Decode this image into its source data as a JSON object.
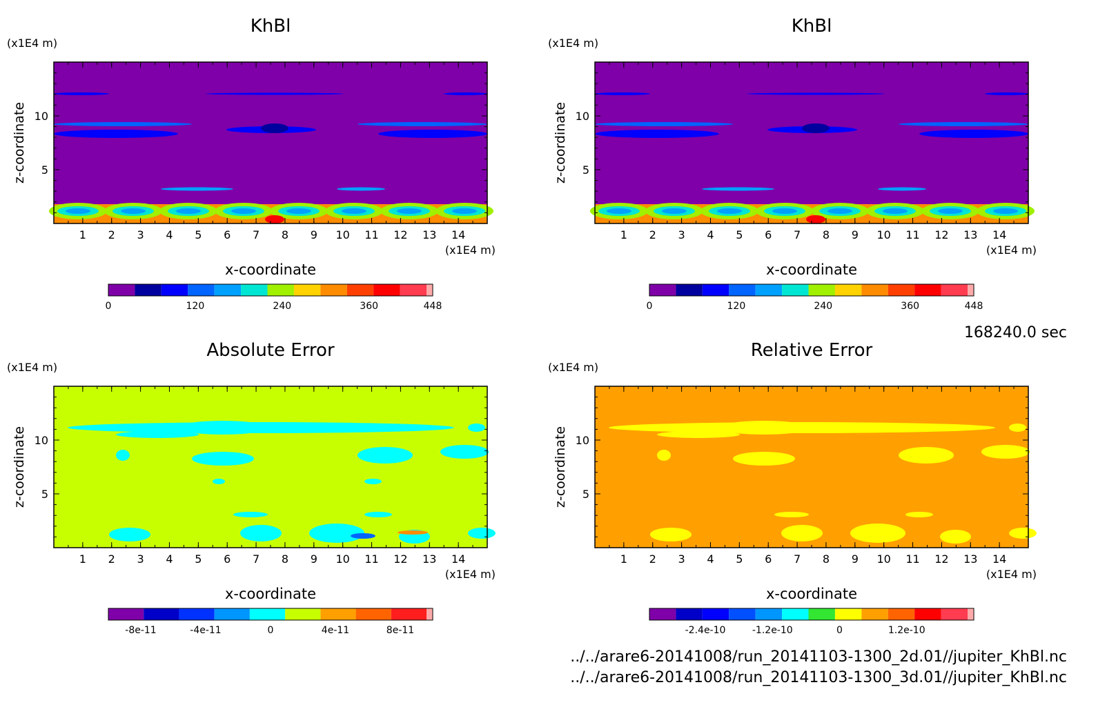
{
  "time_label": "168240.0 sec",
  "files": [
    "../../arare6-20141008/run_20141103-1300_2d.01//jupiter_KhBl.nc",
    "../../arare6-20141008/run_20141103-1300_3d.01//jupiter_KhBl.nc"
  ],
  "chart_data": [
    {
      "type": "heatmap",
      "title": "KhBl",
      "xlabel": "x-coordinate",
      "ylabel": "z-coordinate",
      "x_unit": "(x1E4 m)",
      "y_unit": "(x1E4 m)",
      "xlim": [
        0,
        15
      ],
      "ylim": [
        0,
        15
      ],
      "x_ticks": [
        "1",
        "2",
        "3",
        "4",
        "5",
        "6",
        "7",
        "8",
        "9",
        "10",
        "11",
        "12",
        "13",
        "14"
      ],
      "y_ticks": [
        "5",
        "10"
      ],
      "colorbar": {
        "colors": [
          "#7f00a8",
          "#00009e",
          "#0000ff",
          "#0064ff",
          "#00a0ff",
          "#00e6d2",
          "#a0f000",
          "#ffd200",
          "#ff8c00",
          "#ff4000",
          "#ff0000",
          "#ff3c50",
          "#ffaaaa"
        ],
        "tick_labels": [
          "0",
          "120",
          "240",
          "360",
          "448"
        ],
        "tick_values": [
          0,
          120,
          240,
          360,
          448
        ],
        "range": [
          0,
          448
        ]
      },
      "background": "#7f00a8"
    },
    {
      "type": "heatmap",
      "title": "KhBl",
      "xlabel": "x-coordinate",
      "ylabel": "z-coordinate",
      "x_unit": "(x1E4 m)",
      "y_unit": "(x1E4 m)",
      "xlim": [
        0,
        15
      ],
      "ylim": [
        0,
        15
      ],
      "x_ticks": [
        "1",
        "2",
        "3",
        "4",
        "5",
        "6",
        "7",
        "8",
        "9",
        "10",
        "11",
        "12",
        "13",
        "14"
      ],
      "y_ticks": [
        "5",
        "10"
      ],
      "colorbar": {
        "colors": [
          "#7f00a8",
          "#00009e",
          "#0000ff",
          "#0064ff",
          "#00a0ff",
          "#00e6d2",
          "#a0f000",
          "#ffd200",
          "#ff8c00",
          "#ff4000",
          "#ff0000",
          "#ff3c50",
          "#ffaaaa"
        ],
        "tick_labels": [
          "0",
          "120",
          "240",
          "360",
          "448"
        ],
        "tick_values": [
          0,
          120,
          240,
          360,
          448
        ],
        "range": [
          0,
          448
        ]
      },
      "background": "#7f00a8"
    },
    {
      "type": "heatmap",
      "title": "Absolute Error",
      "xlabel": "x-coordinate",
      "ylabel": "z-coordinate",
      "x_unit": "(x1E4 m)",
      "y_unit": "(x1E4 m)",
      "xlim": [
        0,
        15
      ],
      "ylim": [
        0,
        15
      ],
      "x_ticks": [
        "1",
        "2",
        "3",
        "4",
        "5",
        "6",
        "7",
        "8",
        "9",
        "10",
        "11",
        "12",
        "13",
        "14"
      ],
      "y_ticks": [
        "5",
        "10"
      ],
      "colorbar": {
        "colors": [
          "#7f00a8",
          "#0000c8",
          "#0032ff",
          "#0096ff",
          "#00ffff",
          "#c8ff00",
          "#ffa000",
          "#ff6400",
          "#ff1e1e",
          "#ffaaaa"
        ],
        "tick_labels": [
          "-8e-11",
          "-4e-11",
          "0",
          "4e-11",
          "8e-11"
        ],
        "tick_values": [
          -8e-11,
          -4e-11,
          0,
          4e-11,
          8e-11
        ],
        "range": [
          -1e-10,
          1e-10
        ]
      },
      "background": "#c8ff00"
    },
    {
      "type": "heatmap",
      "title": "Relative Error",
      "xlabel": "x-coordinate",
      "ylabel": "z-coordinate",
      "x_unit": "(x1E4 m)",
      "y_unit": "(x1E4 m)",
      "xlim": [
        0,
        15
      ],
      "ylim": [
        0,
        15
      ],
      "x_ticks": [
        "1",
        "2",
        "3",
        "4",
        "5",
        "6",
        "7",
        "8",
        "9",
        "10",
        "11",
        "12",
        "13",
        "14"
      ],
      "y_ticks": [
        "5",
        "10"
      ],
      "colorbar": {
        "colors": [
          "#7f00a8",
          "#0000c8",
          "#0000ff",
          "#0050ff",
          "#0096ff",
          "#00ffff",
          "#32e632",
          "#ffff00",
          "#ffa000",
          "#ff6400",
          "#ff0000",
          "#ff3c50",
          "#ffaaaa"
        ],
        "tick_labels": [
          "-2.4e-10",
          "-1.2e-10",
          "0",
          "1.2e-10"
        ],
        "tick_values": [
          -2.4e-10,
          -1.2e-10,
          0,
          1.2e-10
        ],
        "range": [
          -3.4e-10,
          2.4e-10
        ]
      },
      "background": "#ffa000"
    }
  ]
}
